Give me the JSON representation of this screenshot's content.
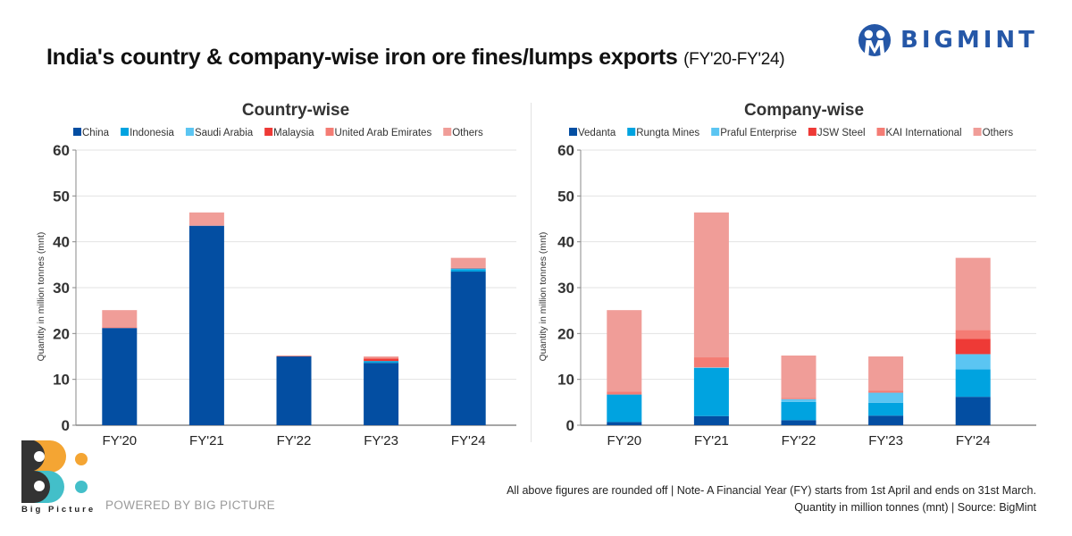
{
  "header": {
    "title": "India's country & company-wise  iron ore fines/lumps exports",
    "subtitle": "(FY'20-FY'24)",
    "brand": "BIGMINT"
  },
  "chart_data": [
    {
      "type": "bar",
      "stacked": true,
      "title": "Country-wise",
      "categories": [
        "FY'20",
        "FY'21",
        "FY'22",
        "FY'23",
        "FY'24"
      ],
      "series": [
        {
          "name": "China",
          "color": "#034ea2",
          "values": [
            21.2,
            43.5,
            15.0,
            13.6,
            33.5
          ]
        },
        {
          "name": "Indonesia",
          "color": "#00a3e0",
          "values": [
            0.0,
            0.0,
            0.0,
            0.4,
            0.5
          ]
        },
        {
          "name": "Saudi Arabia",
          "color": "#5bc5f2",
          "values": [
            0.0,
            0.0,
            0.0,
            0.0,
            0.2
          ]
        },
        {
          "name": "Malaysia",
          "color": "#ee3a36",
          "values": [
            0.0,
            0.0,
            0.0,
            0.5,
            0.1
          ]
        },
        {
          "name": "United Arab Emirates",
          "color": "#f47c74",
          "values": [
            0.2,
            0.0,
            0.1,
            0.2,
            0.0
          ]
        },
        {
          "name": "Others",
          "color": "#f09d98",
          "values": [
            3.7,
            2.9,
            0.1,
            0.3,
            2.2
          ]
        }
      ],
      "xlabel": "",
      "ylabel": "Quantity in million tonnes (mnt)",
      "ylim": [
        0,
        60
      ],
      "yticks": [
        0,
        10,
        20,
        30,
        40,
        50,
        60
      ],
      "grid": true,
      "legend": "top"
    },
    {
      "type": "bar",
      "stacked": true,
      "title": "Company-wise",
      "categories": [
        "FY'20",
        "FY'21",
        "FY'22",
        "FY'23",
        "FY'24"
      ],
      "series": [
        {
          "name": "Vedanta",
          "color": "#034ea2",
          "values": [
            0.7,
            2.0,
            1.1,
            2.1,
            6.2
          ]
        },
        {
          "name": "Rungta Mines",
          "color": "#00a3e0",
          "values": [
            6.0,
            10.5,
            4.0,
            2.8,
            6.0
          ]
        },
        {
          "name": "Praful Enterprise",
          "color": "#5bc5f2",
          "values": [
            0.0,
            0.1,
            0.6,
            2.2,
            3.3
          ]
        },
        {
          "name": "JSW Steel",
          "color": "#ee3a36",
          "values": [
            0.0,
            0.0,
            0.0,
            0.0,
            3.3
          ]
        },
        {
          "name": "KAI International",
          "color": "#f47c74",
          "values": [
            0.6,
            2.2,
            0.3,
            0.4,
            2.0
          ]
        },
        {
          "name": "Others",
          "color": "#f09d98",
          "values": [
            17.8,
            31.6,
            9.2,
            7.5,
            15.7
          ]
        }
      ],
      "xlabel": "",
      "ylabel": "Quantity in million tonnes (mnt)",
      "ylim": [
        0,
        60
      ],
      "yticks": [
        0,
        10,
        20,
        30,
        40,
        50,
        60
      ],
      "grid": true,
      "legend": "top"
    }
  ],
  "footer": {
    "note_line1": "All above figures are rounded off | Note- A Financial Year (FY) starts from 1st April and ends on 31st March.",
    "note_line2": "Quantity in million tonnes (mnt) | Source: BigMint",
    "powered_by": "POWERED BY BIG PICTURE",
    "big_picture_name": "Big Picture"
  }
}
